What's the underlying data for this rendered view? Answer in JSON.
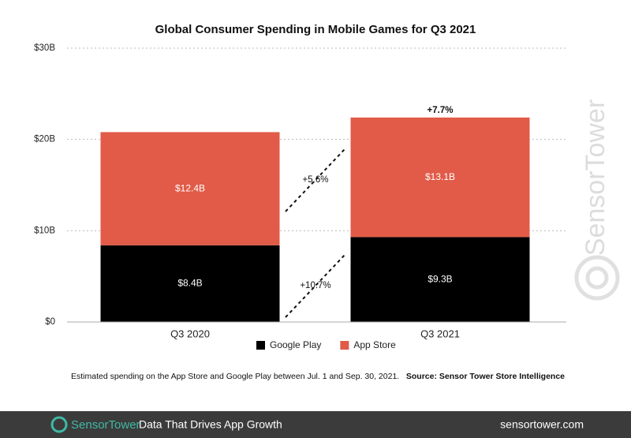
{
  "chart_data": {
    "type": "stacked-bar",
    "title": "Global Consumer Spending in Mobile Games for Q3 2021",
    "categories": [
      "Q3 2020",
      "Q3 2021"
    ],
    "series": [
      {
        "name": "Google Play",
        "color": "#000000",
        "values": [
          8.4,
          9.3
        ],
        "value_labels": [
          "$8.4B",
          "$9.3B"
        ]
      },
      {
        "name": "App Store",
        "color": "#e15b48",
        "values": [
          12.4,
          13.1
        ],
        "value_labels": [
          "$12.4B",
          "$13.1B"
        ]
      }
    ],
    "ylim": [
      0,
      30
    ],
    "yticks": [
      {
        "value": 0,
        "label": "$0"
      },
      {
        "value": 10,
        "label": "$10B"
      },
      {
        "value": 20,
        "label": "$20B"
      },
      {
        "value": 30,
        "label": "$30B"
      }
    ],
    "grid": true,
    "legend": "bottom",
    "annotations": [
      "+7.7%",
      "+5.6%",
      "+10.7%"
    ]
  },
  "footer": {
    "note": "Estimated spending on the App Store and Google Play between Jul. 1 and Sep. 30, 2021.",
    "source": "Source: Sensor Tower Store Intelligence"
  },
  "watermark": "SensorTower",
  "brand": {
    "logo": "SensorTower",
    "tagline": "Data That Drives App Growth",
    "url": "sensortower.com"
  }
}
